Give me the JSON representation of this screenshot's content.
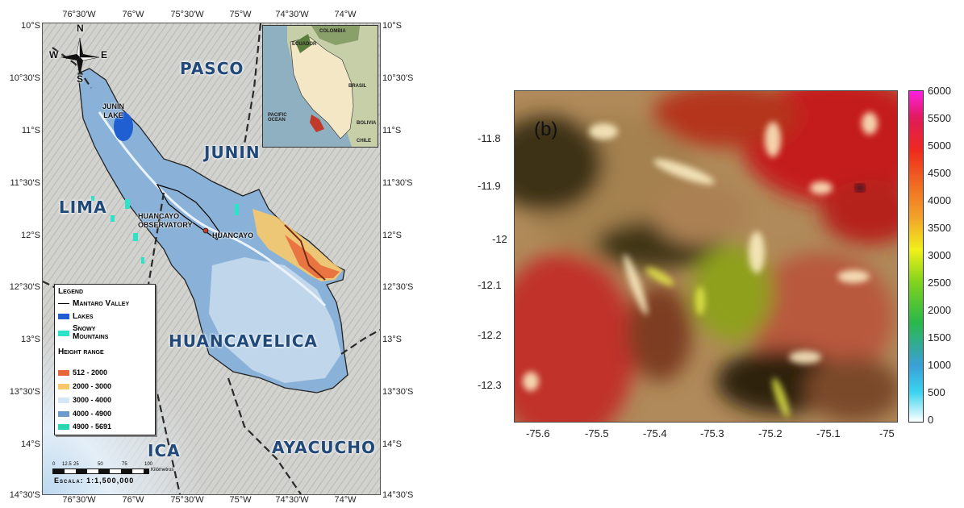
{
  "map_panel": {
    "top_lon_ticks": [
      "76°30'W",
      "76°W",
      "75°30'W",
      "75°W",
      "74°30'W",
      "74°W"
    ],
    "bottom_lon_ticks": [
      "76°30'W",
      "76°W",
      "75°30'W",
      "75°W",
      "74°30'W",
      "74°W"
    ],
    "left_lat_ticks": [
      "10°S",
      "10°30'S",
      "11°S",
      "11°30'S",
      "12°S",
      "12°30'S",
      "13°S",
      "13°30'S",
      "14°S",
      "14°30'S"
    ],
    "right_lat_ticks": [
      "10°S",
      "10°30'S",
      "11°S",
      "11°30'S",
      "12°S",
      "12°30'S",
      "13°S",
      "13°30'S",
      "14°S",
      "14°30'S"
    ],
    "compass": {
      "n": "N",
      "s": "S",
      "e": "E",
      "w": "W"
    },
    "regions": {
      "pasco": "PASCO",
      "junin": "JUNIN",
      "lima": "LIMA",
      "huancavelica": "HUANCAVELICA",
      "ica": "ICA",
      "ayacucho": "AYACUCHO"
    },
    "places": {
      "junin_lake": "JUNIN\nLAKE",
      "huancayo_observatory": "HUANCAYO\nOBSERVATORY",
      "huancayo": "HUANCAYO"
    },
    "inset": {
      "colombia": "COLOMBIA",
      "ecuador": "ECUADOR",
      "brasil": "BRASIL",
      "pacific_ocean": "PACIFIC\nOCEAN",
      "bolivia": "BOLIVIA",
      "chile": "CHILE"
    },
    "legend": {
      "title": "Legend",
      "mantaro_valley": "Mantaro Valley",
      "lakes": "Lakes",
      "snowy_mountains": "Snowy\nMountains",
      "height_range_title": "Height range",
      "height_ranges": [
        {
          "label": "512 - 2000",
          "color": "#e8673a"
        },
        {
          "label": "2000 - 3000",
          "color": "#f7c96b"
        },
        {
          "label": "3000 - 4000",
          "color": "#d6e6f2"
        },
        {
          "label": "4000 - 4900",
          "color": "#6d9ccc"
        },
        {
          "label": "4900 - 5691",
          "color": "#2ad6b0"
        }
      ],
      "lakes_color": "#1f5fd1",
      "snowy_color": "#2ae3c8"
    },
    "scale_bar": {
      "ticks": [
        "0",
        "12.5",
        "25",
        "50",
        "75",
        "100"
      ],
      "unit": "Kilómetros",
      "text": "Escala: 1:1,500,000"
    }
  },
  "heatmap_panel": {
    "label": "(b)",
    "x_ticks": [
      "-75.6",
      "-75.5",
      "-75.4",
      "-75.3",
      "-75.2",
      "-75.1",
      "-75"
    ],
    "y_ticks": [
      "-11.8",
      "-11.9",
      "-12",
      "-12.1",
      "-12.2",
      "-12.3"
    ],
    "colorbar_ticks": [
      "6000",
      "5500",
      "5000",
      "4500",
      "4000",
      "3500",
      "3000",
      "2500",
      "2000",
      "1500",
      "1000",
      "500",
      "0"
    ]
  }
}
